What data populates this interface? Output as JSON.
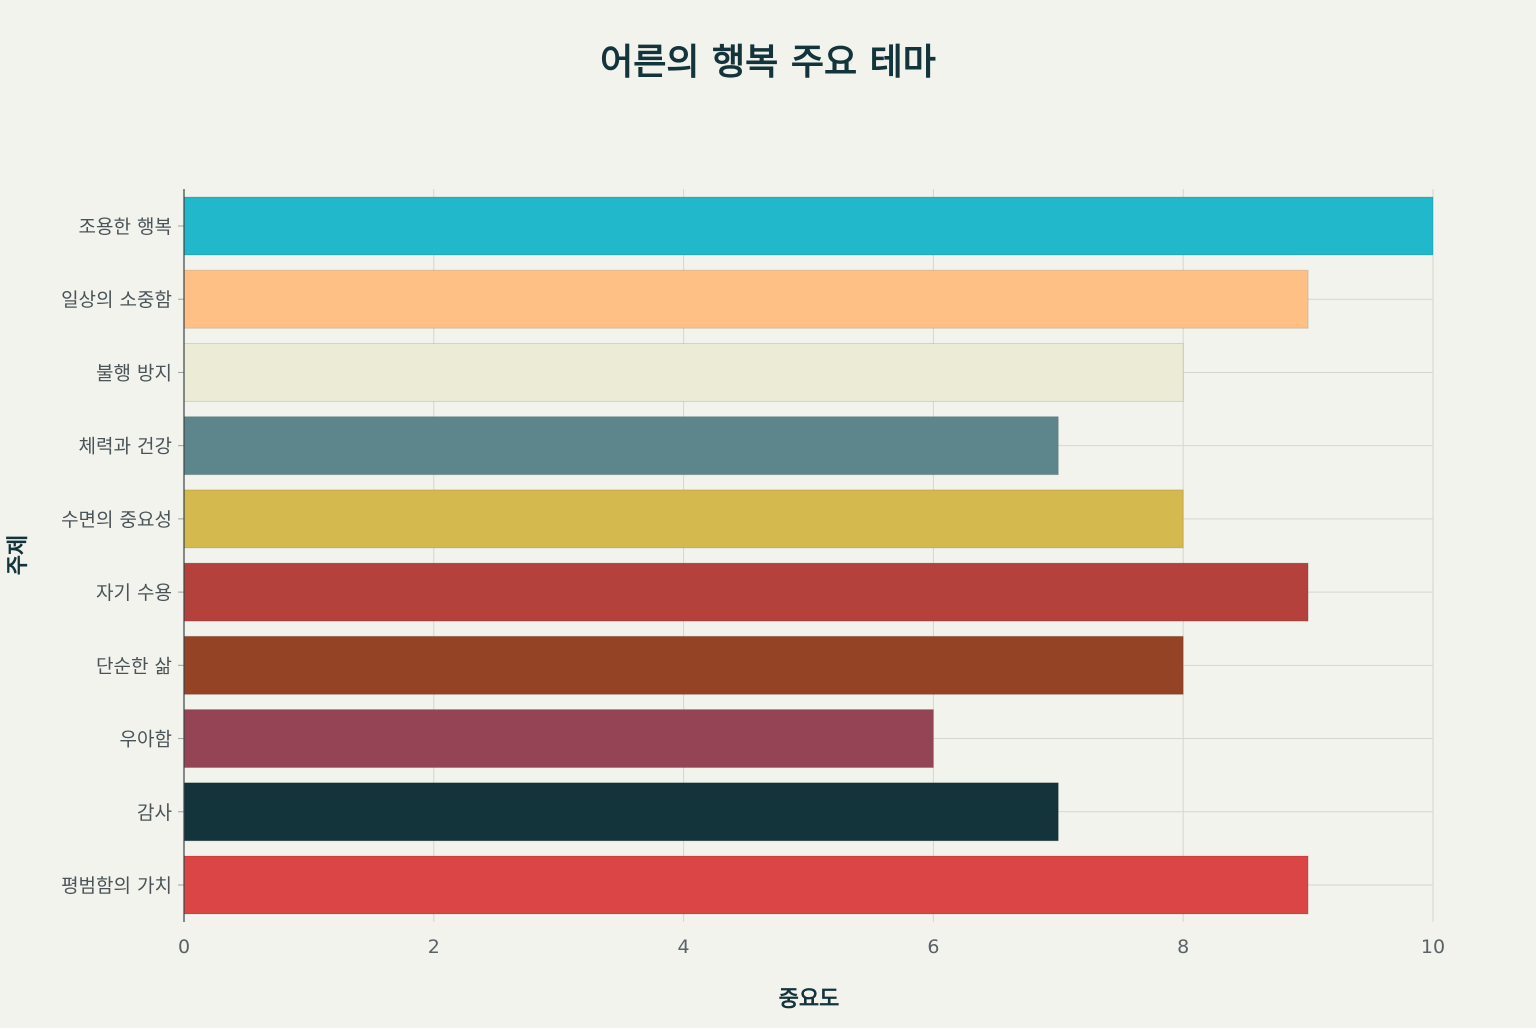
{
  "chart_data": {
    "type": "bar",
    "orientation": "horizontal",
    "title": "어른의 행복 주요 테마",
    "xlabel": "중요도",
    "ylabel": "주제",
    "xlim": [
      0,
      10
    ],
    "x_ticks": [
      "0",
      "2",
      "4",
      "6",
      "8",
      "10"
    ],
    "grid": true,
    "categories": [
      "조용한 행복",
      "일상의 소중함",
      "불행 방지",
      "체력과 건강",
      "수면의 중요성",
      "자기 수용",
      "단순한 삶",
      "우아함",
      "감사",
      "평범함의 가치"
    ],
    "values": [
      10,
      9,
      8,
      7,
      8,
      9,
      8,
      6,
      7,
      9
    ],
    "colors": [
      "#21b8cc",
      "#ffc086",
      "#ecebd5",
      "#5d868c",
      "#d3b94e",
      "#b5413d",
      "#944325",
      "#944455",
      "#13343b",
      "#db4545"
    ]
  }
}
